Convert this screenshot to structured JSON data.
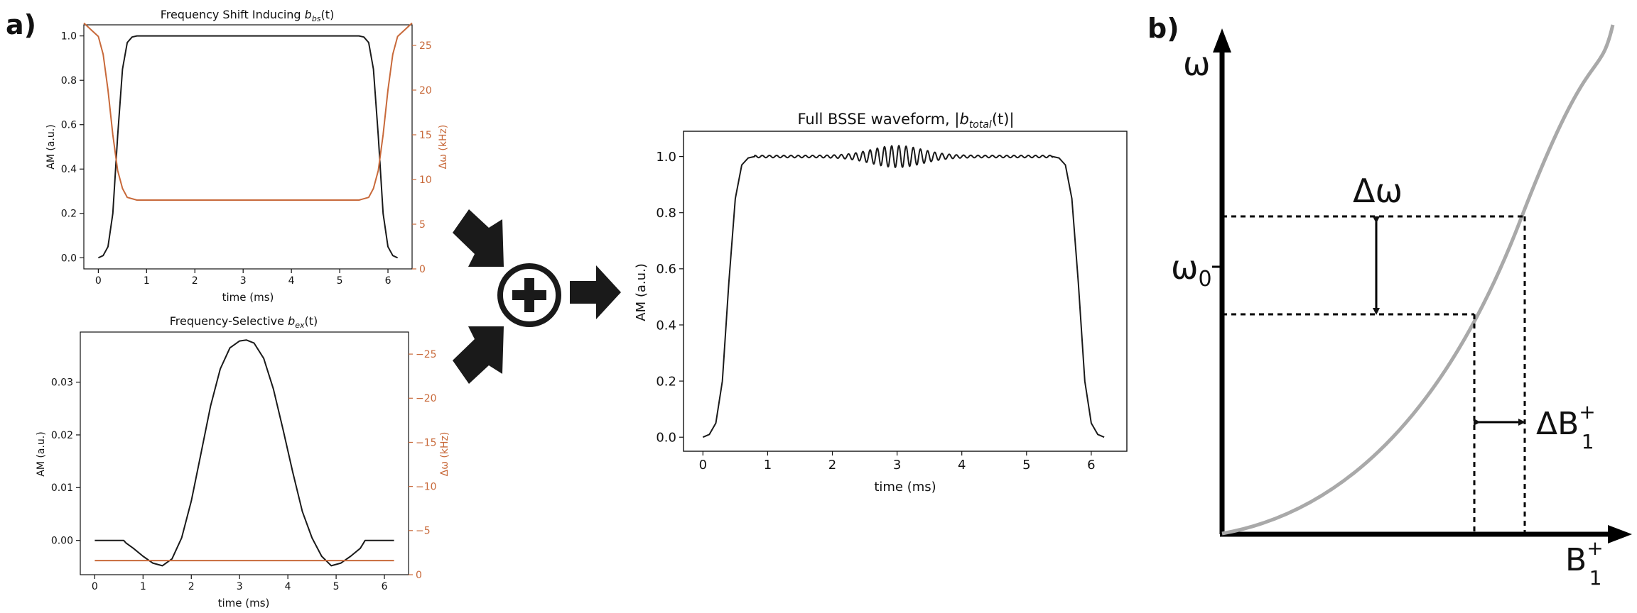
{
  "panel_labels": {
    "a": "a)",
    "b": "b)"
  },
  "colors": {
    "am": "#1a1a1a",
    "dw": "#c8693a",
    "curve": "#a9a9a9",
    "ink": "#111111"
  },
  "icons": {
    "arrows": "arrow-icon",
    "sum": "circled-plus-icon"
  },
  "plot_bs": {
    "title_main": "Frequency Shift Inducing ",
    "title_sym": "b",
    "title_sub": "bs",
    "title_end": "(t)",
    "xlabel": "time (ms)",
    "ylabel_left": "AM (a.u.)",
    "ylabel_right": "Δω (kHz)"
  },
  "plot_ex": {
    "title_main": "Frequency-Selective ",
    "title_sym": "b",
    "title_sub": "ex",
    "title_end": "(t)",
    "xlabel": "time (ms)",
    "ylabel_left": "AM (a.u.)",
    "ylabel_right": "Δω (kHz)"
  },
  "plot_total": {
    "title_main": "Full BSSE waveform, |",
    "title_sym": "b",
    "title_sub": "total",
    "title_end": "(t)|",
    "xlabel": "time (ms)",
    "ylabel_left": "AM (a.u.)"
  },
  "diagram_b": {
    "omega": "ω",
    "omega0_main": "ω",
    "omega0_sub": "0",
    "delta_omega": "Δω",
    "delta_b1_main": "ΔB",
    "delta_b1_sup": "+",
    "delta_b1_sub": "1",
    "b1_main": "B",
    "b1_sup": "+",
    "b1_sub": "1"
  },
  "chart_data": [
    {
      "id": "bs",
      "type": "line",
      "x_ticks": [
        0,
        1,
        2,
        3,
        4,
        5,
        6
      ],
      "xlim": [
        -0.3,
        6.5
      ],
      "ylim": [
        -0.05,
        1.05
      ],
      "y_ticks": [
        0.0,
        0.2,
        0.4,
        0.6,
        0.8,
        1.0
      ],
      "y_tick_labels": [
        "0.0",
        "0.2",
        "0.4",
        "0.6",
        "0.8",
        "1.0"
      ],
      "y2lim": [
        0,
        27.3
      ],
      "y2_ticks": [
        0,
        5,
        10,
        15,
        20,
        25
      ],
      "y2_tick_labels": [
        "0",
        "5",
        "10",
        "15",
        "20",
        "25"
      ],
      "series": [
        {
          "axis": "left",
          "color": "#1a1a1a",
          "x": [
            0,
            0.1,
            0.2,
            0.3,
            0.4,
            0.5,
            0.6,
            0.7,
            0.8,
            1.0,
            2.0,
            3.0,
            4.0,
            5.0,
            5.4,
            5.5,
            5.6,
            5.7,
            5.8,
            5.9,
            6.0,
            6.1,
            6.2
          ],
          "y": [
            0.0,
            0.01,
            0.05,
            0.2,
            0.55,
            0.85,
            0.97,
            0.995,
            1.0,
            1.0,
            1.0,
            1.0,
            1.0,
            1.0,
            1.0,
            0.995,
            0.97,
            0.85,
            0.55,
            0.2,
            0.05,
            0.01,
            0.0
          ]
        },
        {
          "axis": "right",
          "color": "#c8693a",
          "x": [
            -0.3,
            0,
            0.1,
            0.2,
            0.3,
            0.4,
            0.5,
            0.6,
            0.8,
            1.0,
            2.0,
            3.0,
            4.0,
            5.0,
            5.4,
            5.6,
            5.7,
            5.8,
            5.9,
            6.0,
            6.1,
            6.2,
            6.5
          ],
          "y": [
            27.5,
            26,
            24,
            20,
            15,
            11,
            9,
            8,
            7.7,
            7.7,
            7.7,
            7.7,
            7.7,
            7.7,
            7.7,
            8,
            9,
            11,
            15,
            20,
            24,
            26,
            27.5
          ]
        }
      ]
    },
    {
      "id": "ex",
      "type": "line",
      "x_ticks": [
        0,
        1,
        2,
        3,
        4,
        5,
        6
      ],
      "xlim": [
        -0.3,
        6.5
      ],
      "ylim": [
        -0.0065,
        0.0395
      ],
      "y_ticks": [
        0.0,
        0.01,
        0.02,
        0.03
      ],
      "y_tick_labels": [
        "0.00",
        "0.01",
        "0.02",
        "0.03"
      ],
      "y2lim": [
        0,
        -27.5
      ],
      "y2_ticks": [
        0,
        -5,
        -10,
        -15,
        -20,
        -25
      ],
      "y2_tick_labels": [
        "0",
        "−5",
        "−10",
        "−15",
        "−20",
        "−25"
      ],
      "series": [
        {
          "axis": "left",
          "color": "#1a1a1a",
          "x": [
            0,
            0.6,
            0.65,
            0.8,
            1.0,
            1.2,
            1.4,
            1.6,
            1.8,
            2.0,
            2.2,
            2.4,
            2.6,
            2.8,
            3.0,
            3.14,
            3.3,
            3.5,
            3.7,
            3.9,
            4.1,
            4.3,
            4.5,
            4.7,
            4.9,
            5.1,
            5.3,
            5.5,
            5.6,
            6.2
          ],
          "y": [
            0.0,
            0.0,
            -0.0005,
            -0.0015,
            -0.003,
            -0.0043,
            -0.0048,
            -0.0035,
            0.0005,
            0.0075,
            0.0165,
            0.0255,
            0.0325,
            0.0365,
            0.0378,
            0.038,
            0.0374,
            0.0345,
            0.0287,
            0.021,
            0.013,
            0.0055,
            0.0005,
            -0.003,
            -0.0048,
            -0.0043,
            -0.003,
            -0.0015,
            0.0,
            0.0
          ]
        },
        {
          "axis": "right",
          "color": "#c8693a",
          "x": [
            0,
            6.2
          ],
          "y": [
            -1.6,
            -1.6
          ]
        }
      ]
    },
    {
      "id": "total",
      "type": "line",
      "x_ticks": [
        0,
        1,
        2,
        3,
        4,
        5,
        6
      ],
      "xlim": [
        -0.3,
        6.55
      ],
      "ylim": [
        -0.05,
        1.09
      ],
      "y_ticks": [
        0.0,
        0.2,
        0.4,
        0.6,
        0.8,
        1.0
      ],
      "y_tick_labels": [
        "0.0",
        "0.2",
        "0.4",
        "0.6",
        "0.8",
        "1.0"
      ],
      "series": [
        {
          "axis": "left",
          "color": "#1a1a1a",
          "x": [
            0,
            0.1,
            0.2,
            0.3,
            0.4,
            0.5,
            0.6,
            0.7,
            0.8,
            5.4,
            5.5,
            5.6,
            5.7,
            5.8,
            5.9,
            6.0,
            6.1,
            6.2
          ],
          "y": [
            0.0,
            0.01,
            0.05,
            0.2,
            0.55,
            0.85,
            0.97,
            0.995,
            1.0,
            1.0,
            0.995,
            0.97,
            0.85,
            0.55,
            0.2,
            0.05,
            0.01,
            0.0
          ],
          "ripple": {
            "x_start": 0.8,
            "x_end": 5.4,
            "center": 3.0,
            "base_amp": 0.004,
            "peak_amp": 0.035,
            "width": 0.55,
            "freq": 9
          }
        }
      ]
    }
  ]
}
